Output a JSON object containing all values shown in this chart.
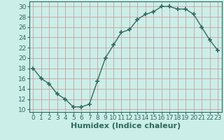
{
  "x": [
    0,
    1,
    2,
    3,
    4,
    5,
    6,
    7,
    8,
    9,
    10,
    11,
    12,
    13,
    14,
    15,
    16,
    17,
    18,
    19,
    20,
    21,
    22,
    23
  ],
  "y": [
    18,
    16,
    15,
    13,
    12,
    10.5,
    10.5,
    11,
    15.5,
    20,
    22.5,
    25,
    25.5,
    27.5,
    28.5,
    29,
    30,
    30,
    29.5,
    29.5,
    28.5,
    26,
    23.5,
    21.5
  ],
  "line_color": "#2e6b5e",
  "marker_color": "#2e6b5e",
  "bg_color": "#cceee8",
  "grid_color": "#c8a0a0",
  "xlabel": "Humidex (Indice chaleur)",
  "xlabel_fontsize": 8,
  "tick_fontsize": 6.5,
  "xlim": [
    -0.5,
    23.5
  ],
  "ylim": [
    9.5,
    31
  ],
  "yticks": [
    10,
    12,
    14,
    16,
    18,
    20,
    22,
    24,
    26,
    28,
    30
  ],
  "xticks": [
    0,
    1,
    2,
    3,
    4,
    5,
    6,
    7,
    8,
    9,
    10,
    11,
    12,
    13,
    14,
    15,
    16,
    17,
    18,
    19,
    20,
    21,
    22,
    23
  ]
}
